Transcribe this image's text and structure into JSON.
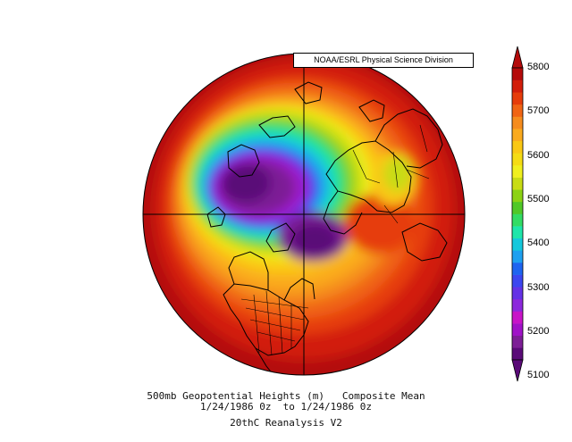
{
  "credit": "NOAA/ESRL Physical Science Division",
  "caption": {
    "line1": "500mb Geopotential Heights (m)   Composite Mean",
    "line2": "1/24/1986 0z  to 1/24/1986 0z",
    "line3": "20thC Reanalysis V2"
  },
  "colorbar": {
    "labels": [
      "5800",
      "5700",
      "5600",
      "5500",
      "5400",
      "5300",
      "5200",
      "5100"
    ],
    "colors": [
      "#5a0a78",
      "#7d1e96",
      "#a012c8",
      "#c814c8",
      "#8c28dc",
      "#6432e6",
      "#3c46f0",
      "#1e64f0",
      "#1ea0f0",
      "#14c8dc",
      "#1ee6aa",
      "#32dc64",
      "#50c828",
      "#8cd214",
      "#c8dc14",
      "#f0f01e",
      "#f5dc14",
      "#fac814",
      "#faaa1e",
      "#f58c1e",
      "#f06414",
      "#e63c0a",
      "#d21e0a",
      "#b40a0a"
    ],
    "over_color": "#b40a0a",
    "under_color": "#5a0a78"
  }
}
